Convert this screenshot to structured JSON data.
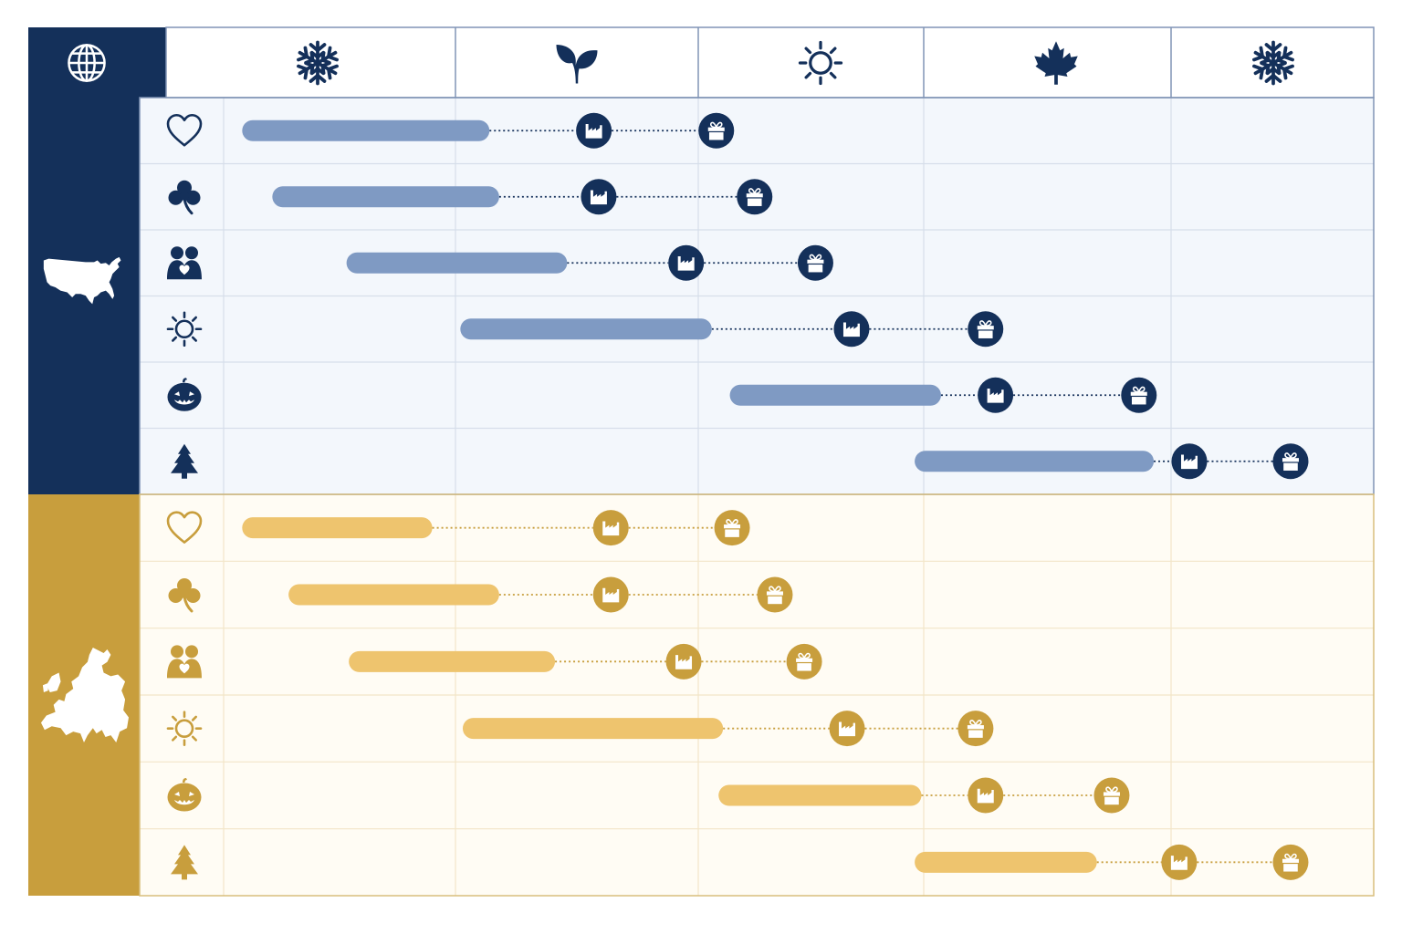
{
  "header": {
    "corner_icon": "globe-icon",
    "seasons": [
      {
        "key": "winter-start",
        "icon": "snowflake-icon"
      },
      {
        "key": "spring",
        "icon": "sprout-icon"
      },
      {
        "key": "summer",
        "icon": "sun-icon"
      },
      {
        "key": "autumn",
        "icon": "maple-leaf-icon"
      },
      {
        "key": "winter-end",
        "icon": "snowflake-icon"
      }
    ]
  },
  "timeline": {
    "start_icon_meaning": "factory-icon",
    "end_icon_meaning": "gift-icon"
  },
  "regions": [
    {
      "key": "usa",
      "icon": "usa-map-icon",
      "colors": {
        "dark": "#14305A",
        "bar": "#7F9AC3",
        "bg": "#F3F7FC",
        "dot": "#14305A",
        "dotline": "#14305A",
        "grid": "#D6DEEA"
      },
      "rows": [
        {
          "icon": "heart-icon",
          "bar": [
            0.08,
            1.14
          ],
          "factory": 1.57,
          "gift": 2.08
        },
        {
          "icon": "clover-icon",
          "bar": [
            0.21,
            1.18
          ],
          "factory": 1.59,
          "gift": 2.25
        },
        {
          "icon": "couple-icon",
          "bar": [
            0.53,
            1.46
          ],
          "factory": 1.95,
          "gift": 2.52
        },
        {
          "icon": "sun-icon",
          "bar": [
            1.02,
            2.06
          ],
          "factory": 2.68,
          "gift": 3.25
        },
        {
          "icon": "pumpkin-icon",
          "bar": [
            2.14,
            3.07
          ],
          "factory": 3.29,
          "gift": 3.87
        },
        {
          "icon": "tree-icon",
          "bar": [
            2.96,
            3.93
          ],
          "factory": 4.09,
          "gift": 4.59
        }
      ]
    },
    {
      "key": "europe",
      "icon": "europe-map-icon",
      "colors": {
        "dark": "#C89E3D",
        "bar": "#EEC46E",
        "bg": "#FFFCF4",
        "dot": "#C89E3D",
        "dotline": "#C89E3D",
        "grid": "#F2E6C8"
      },
      "rows": [
        {
          "icon": "heart-icon",
          "bar": [
            0.08,
            0.9
          ],
          "factory": 1.64,
          "gift": 2.15
        },
        {
          "icon": "clover-icon",
          "bar": [
            0.28,
            1.18
          ],
          "factory": 1.64,
          "gift": 2.34
        },
        {
          "icon": "couple-icon",
          "bar": [
            0.54,
            1.41
          ],
          "factory": 1.94,
          "gift": 2.47
        },
        {
          "icon": "sun-icon",
          "bar": [
            1.03,
            2.11
          ],
          "factory": 2.66,
          "gift": 3.21
        },
        {
          "icon": "pumpkin-icon",
          "bar": [
            2.09,
            2.99
          ],
          "factory": 3.25,
          "gift": 3.76
        },
        {
          "icon": "tree-icon",
          "bar": [
            2.96,
            3.7
          ],
          "factory": 4.04,
          "gift": 4.59
        }
      ]
    }
  ]
}
